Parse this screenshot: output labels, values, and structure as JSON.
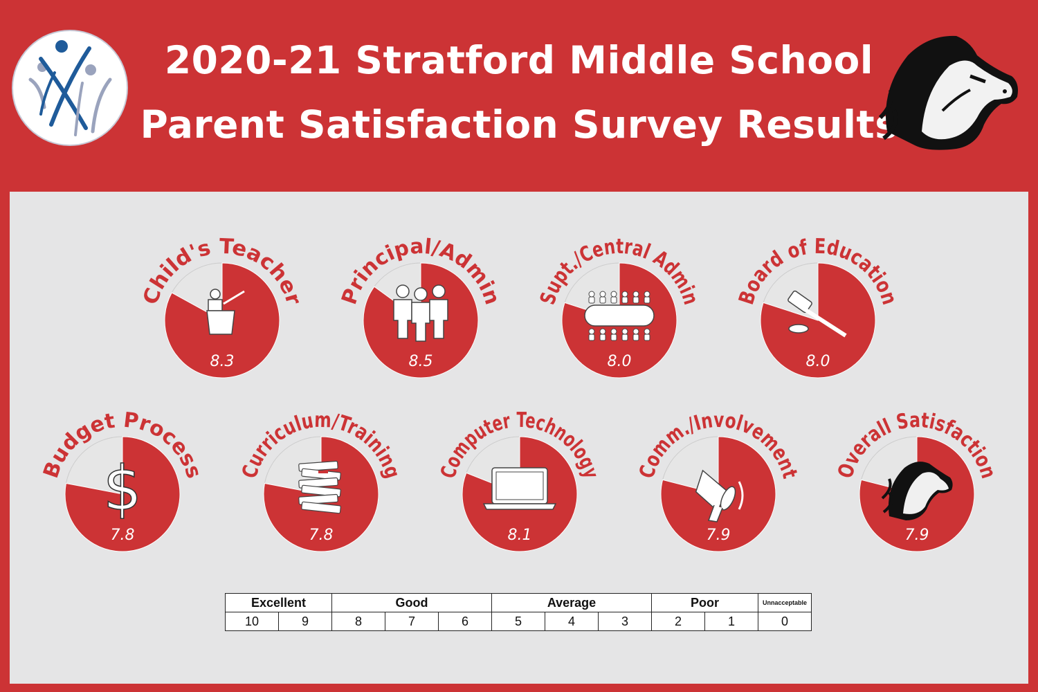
{
  "header": {
    "title_line1": "2020-21 Stratford Middle School",
    "title_line2": "Parent Satisfaction Survey Results"
  },
  "colors": {
    "brand_red": "#cc3335",
    "panel_gray": "#e5e5e6",
    "slice_light": "#e6e6e6",
    "logo_blue": "#1f5b9a",
    "logo_gray": "#9aa3bd"
  },
  "chart_data": {
    "type": "pie",
    "max_value": 10,
    "items": [
      {
        "label": "Child's Teacher",
        "value": 8.3,
        "value_text": "8.3",
        "icon": "teacher-at-podium-icon"
      },
      {
        "label": "Principal/Admin",
        "value": 8.5,
        "value_text": "8.5",
        "icon": "people-group-icon"
      },
      {
        "label": "Supt./Central Admin",
        "value": 8.0,
        "value_text": "8.0",
        "icon": "conference-table-icon"
      },
      {
        "label": "Board of Education",
        "value": 8.0,
        "value_text": "8.0",
        "icon": "gavel-icon"
      },
      {
        "label": "Budget Process",
        "value": 7.8,
        "value_text": "7.8",
        "icon": "dollar-sign-icon"
      },
      {
        "label": "Curriculum/Training",
        "value": 7.8,
        "value_text": "7.8",
        "icon": "book-stack-icon"
      },
      {
        "label": "Computer Technology",
        "value": 8.1,
        "value_text": "8.1",
        "icon": "laptop-icon"
      },
      {
        "label": "Comm./Involvement",
        "value": 7.9,
        "value_text": "7.9",
        "icon": "megaphone-icon"
      },
      {
        "label": "Overall Satisfaction",
        "value": 7.9,
        "value_text": "7.9",
        "icon": "mustang-mascot-icon"
      }
    ]
  },
  "scale": {
    "categories": [
      {
        "label": "Excellent",
        "span": 2
      },
      {
        "label": "Good",
        "span": 3
      },
      {
        "label": "Average",
        "span": 3
      },
      {
        "label": "Poor",
        "span": 2
      },
      {
        "label": "Unnacceptable",
        "span": 1
      }
    ],
    "values": [
      "10",
      "9",
      "8",
      "7",
      "6",
      "5",
      "4",
      "3",
      "2",
      "1",
      "0"
    ]
  }
}
